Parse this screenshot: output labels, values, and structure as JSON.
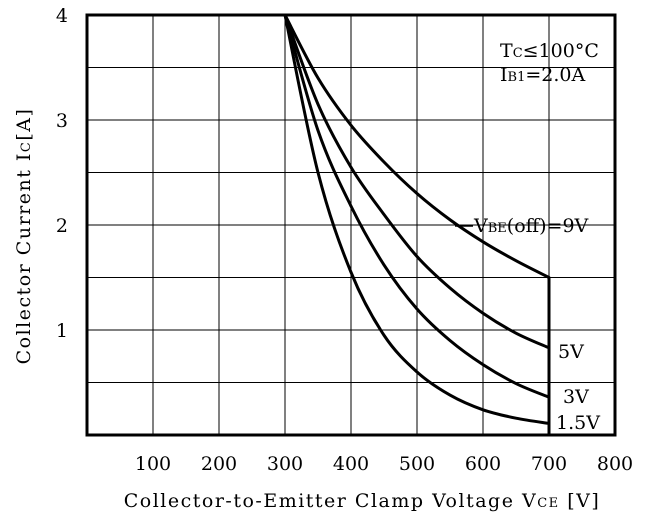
{
  "chart_data": {
    "type": "line",
    "xlabel": "Collector-to-Emitter Clamp Voltage VCE [V]",
    "xlabel_parts": {
      "text": "Collector-to-Emitter Clamp Voltage ",
      "var_main": "V",
      "var_sub": "CE",
      "unit": " [V]"
    },
    "ylabel_parts": {
      "text": "Collector Current ",
      "var_main": "I",
      "var_sub": "C",
      "unit": "[A]"
    },
    "xlim": [
      0,
      800
    ],
    "ylim": [
      0,
      4
    ],
    "x_ticks": [
      100,
      200,
      300,
      400,
      500,
      600,
      700,
      800
    ],
    "y_ticks": [
      1,
      2,
      3,
      4
    ],
    "grid": true,
    "conditions": {
      "line1_main": "T",
      "line1_sub": "C",
      "line1_rest": "≤100°C",
      "line2_main": "I",
      "line2_sub": "B1",
      "line2_rest": "=2.0A"
    },
    "series": [
      {
        "name": "VBE(off)=9V",
        "label_main": "V",
        "label_sub": "BE",
        "label_rest": "(off)=9V",
        "points": [
          [
            300,
            4.0
          ],
          [
            350,
            3.4
          ],
          [
            400,
            2.95
          ],
          [
            450,
            2.6
          ],
          [
            500,
            2.3
          ],
          [
            550,
            2.05
          ],
          [
            600,
            1.84
          ],
          [
            650,
            1.66
          ],
          [
            700,
            1.5
          ],
          [
            700,
            0
          ]
        ]
      },
      {
        "name": "5V",
        "label_main": "5V",
        "points": [
          [
            300,
            4.0
          ],
          [
            350,
            3.15
          ],
          [
            400,
            2.55
          ],
          [
            450,
            2.1
          ],
          [
            500,
            1.7
          ],
          [
            550,
            1.4
          ],
          [
            600,
            1.16
          ],
          [
            650,
            0.97
          ],
          [
            700,
            0.83
          ]
        ]
      },
      {
        "name": "3V",
        "label_main": "3V",
        "points": [
          [
            300,
            4.0
          ],
          [
            350,
            2.9
          ],
          [
            400,
            2.18
          ],
          [
            450,
            1.62
          ],
          [
            500,
            1.2
          ],
          [
            550,
            0.9
          ],
          [
            600,
            0.67
          ],
          [
            650,
            0.49
          ],
          [
            700,
            0.36
          ]
        ]
      },
      {
        "name": "1.5V",
        "label_main": "1.5V",
        "points": [
          [
            300,
            4.0
          ],
          [
            350,
            2.5
          ],
          [
            400,
            1.55
          ],
          [
            450,
            0.95
          ],
          [
            500,
            0.6
          ],
          [
            550,
            0.38
          ],
          [
            600,
            0.24
          ],
          [
            650,
            0.16
          ],
          [
            700,
            0.11
          ]
        ]
      }
    ]
  }
}
